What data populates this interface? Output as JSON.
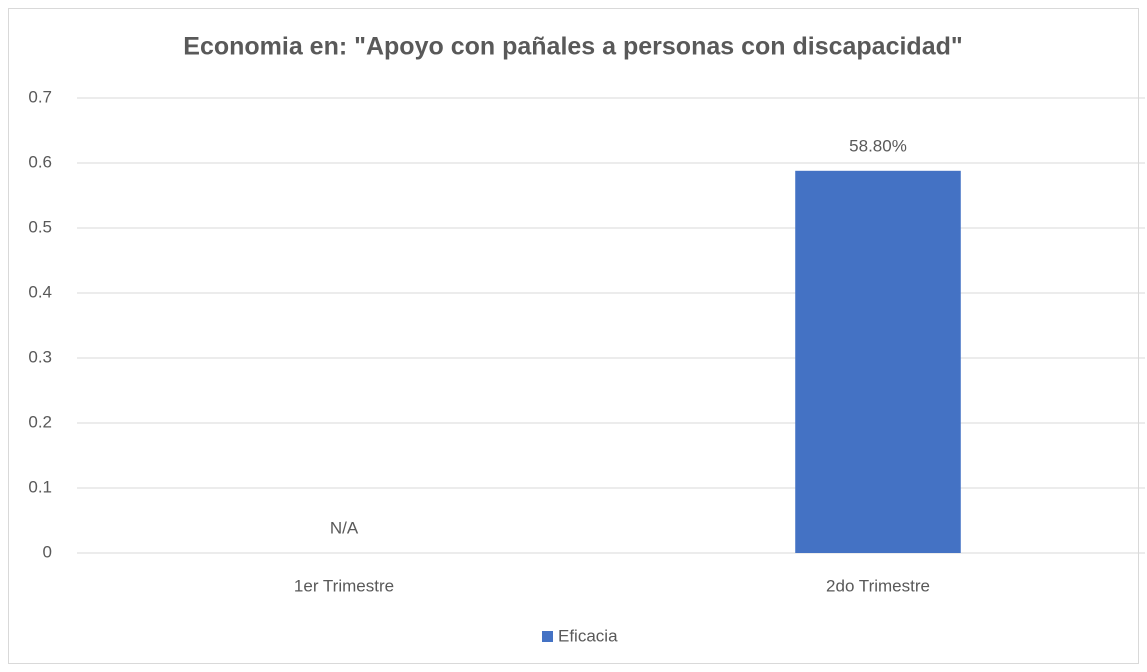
{
  "chart_data": {
    "type": "bar",
    "title": "Economia en: \"Apoyo con pañales a personas con discapacidad\"",
    "categories": [
      "1er Trimestre",
      "2do Trimestre"
    ],
    "series": [
      {
        "name": "Eficacia",
        "color": "#4472c4",
        "values": [
          null,
          0.588
        ],
        "value_labels": [
          "N/A",
          "58.80%"
        ]
      }
    ],
    "ylim": [
      0,
      0.7
    ],
    "yticks": [
      0,
      0.1,
      0.2,
      0.3,
      0.4,
      0.5,
      0.6,
      0.7
    ],
    "grid": true,
    "legend": "bottom"
  }
}
